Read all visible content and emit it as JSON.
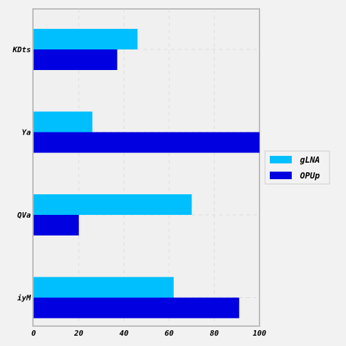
{
  "chart_data": {
    "type": "bar",
    "orientation": "horizontal",
    "categories": [
      "KDts",
      "Ya",
      "QVa",
      "iyM"
    ],
    "series": [
      {
        "name": "gLNA",
        "values": [
          46,
          26,
          70,
          62
        ],
        "color": "#00bfff"
      },
      {
        "name": "OPUp",
        "values": [
          37,
          100,
          20,
          91
        ],
        "color": "#0000e0"
      }
    ],
    "x_ticks": [
      "0",
      "20",
      "40",
      "60",
      "80",
      "100"
    ],
    "xlim": [
      0,
      100
    ],
    "title": "",
    "xlabel": "",
    "ylabel": "",
    "grid": true,
    "legend_position": "right"
  }
}
